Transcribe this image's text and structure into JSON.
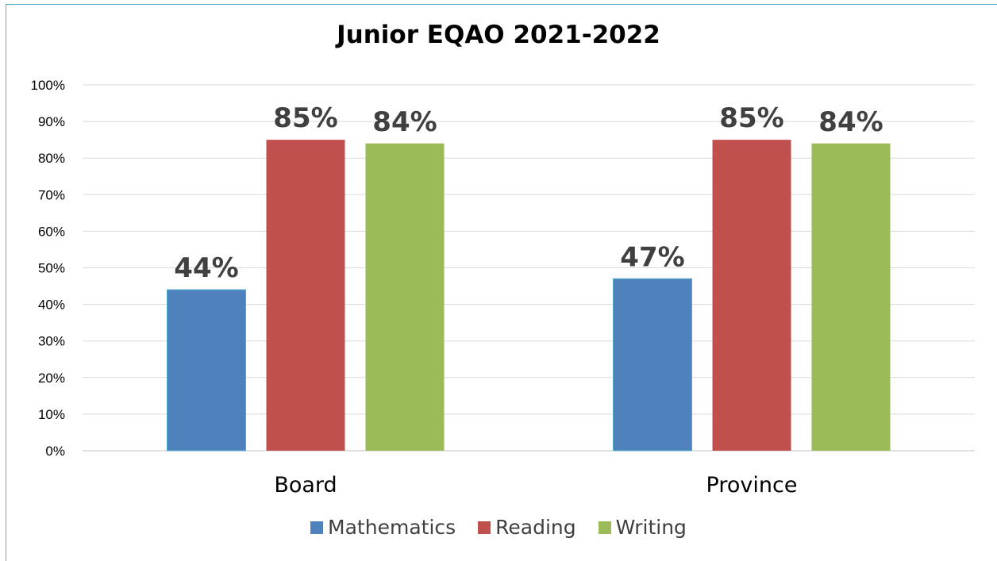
{
  "chart_data": {
    "type": "bar",
    "title": "Junior EQAO 2021-2022",
    "categories": [
      "Board",
      "Province"
    ],
    "series": [
      {
        "name": "Mathematics",
        "values": [
          44,
          47
        ],
        "color": "#4f81bd"
      },
      {
        "name": "Reading",
        "values": [
          85,
          85
        ],
        "color": "#c0504d"
      },
      {
        "name": "Writing",
        "values": [
          84,
          84
        ],
        "color": "#9bbb59"
      }
    ],
    "data_labels": [
      [
        "44%",
        "47%"
      ],
      [
        "85%",
        "85%"
      ],
      [
        "84%",
        "84%"
      ]
    ],
    "ylim": [
      0,
      100
    ],
    "y_ticks": [
      "0%",
      "10%",
      "20%",
      "30%",
      "40%",
      "50%",
      "60%",
      "70%",
      "80%",
      "90%",
      "100%"
    ],
    "xlabel": "",
    "ylabel": "",
    "grid": true,
    "legend": "bottom",
    "colors": {
      "grid": "#d9d9d9",
      "axis": "#bfbfbf",
      "frame": "#4bacc6",
      "label": "#404040"
    }
  }
}
